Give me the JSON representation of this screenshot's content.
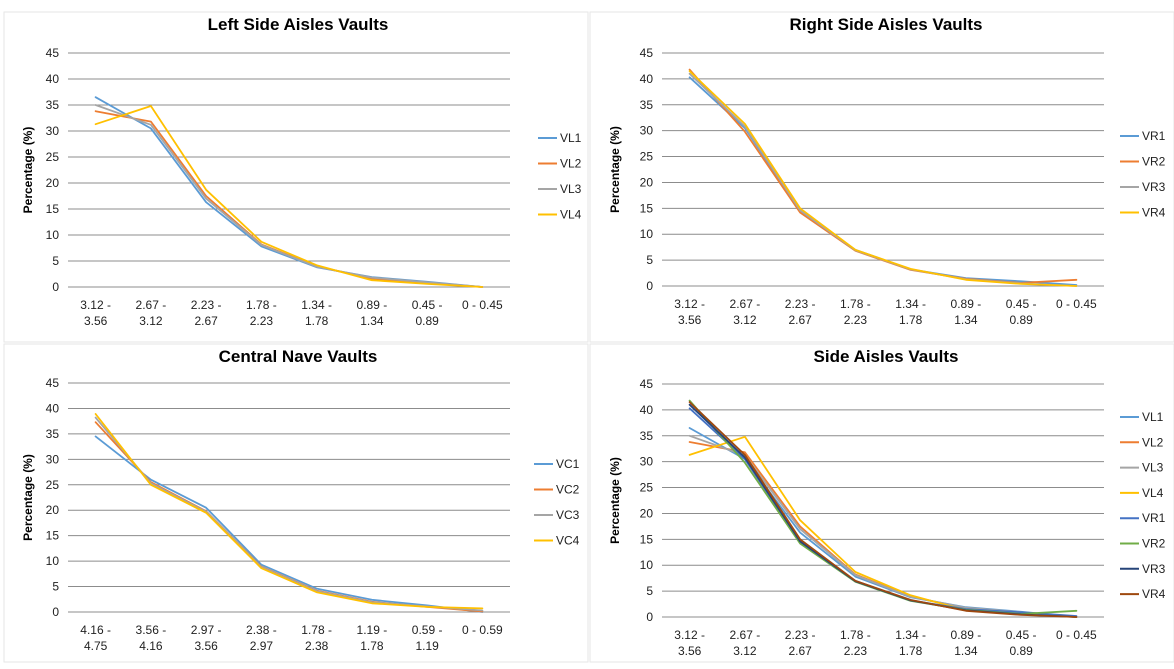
{
  "colors": {
    "VL1": "#5b9bd5",
    "VL2": "#ed7d31",
    "VL3": "#a5a5a5",
    "VL4": "#ffc000",
    "VR1": "#4472c4",
    "VR2": "#70ad47",
    "VR3": "#264478",
    "VR4": "#9e480e"
  },
  "chart_data": [
    {
      "type": "line",
      "title": "Left Side Aisles Vaults",
      "ylabel": "Percentage (%)",
      "xlabel": "",
      "ylim": [
        0,
        45
      ],
      "yticks": [
        0,
        5,
        10,
        15,
        20,
        25,
        30,
        35,
        40,
        45
      ],
      "grid": true,
      "legend": "right",
      "categories": [
        [
          "3.12 -",
          "3.56"
        ],
        [
          "2.67 -",
          "3.12"
        ],
        [
          "2.23 -",
          "2.67"
        ],
        [
          "1.78 -",
          "2.23"
        ],
        [
          "1.34 -",
          "1.78"
        ],
        [
          "0.89 -",
          "1.34"
        ],
        [
          "0.45 -",
          "0.89"
        ],
        [
          "0 - 0.45"
        ]
      ],
      "series": [
        {
          "name": "VL1",
          "color": "#5b9bd5",
          "values": [
            36.5,
            30.5,
            16.3,
            7.8,
            3.8,
            1.9,
            1.0,
            0.0
          ]
        },
        {
          "name": "VL2",
          "color": "#ed7d31",
          "values": [
            33.8,
            31.8,
            17.5,
            8.2,
            4.0,
            1.6,
            0.8,
            0.0
          ]
        },
        {
          "name": "VL3",
          "color": "#a5a5a5",
          "values": [
            35.0,
            31.2,
            17.0,
            8.1,
            3.9,
            1.8,
            0.9,
            0.0
          ]
        },
        {
          "name": "VL4",
          "color": "#ffc000",
          "values": [
            31.3,
            34.8,
            18.7,
            8.7,
            4.2,
            1.3,
            0.6,
            0.0
          ]
        }
      ]
    },
    {
      "type": "line",
      "title": "Right Side Aisles Vaults",
      "ylabel": "Percentage (%)",
      "xlabel": "",
      "ylim": [
        0,
        45
      ],
      "yticks": [
        0,
        5,
        10,
        15,
        20,
        25,
        30,
        35,
        40,
        45
      ],
      "grid": true,
      "legend": "right",
      "categories": [
        [
          "3.12 -",
          "3.56"
        ],
        [
          "2.67 -",
          "3.12"
        ],
        [
          "2.23 -",
          "2.67"
        ],
        [
          "1.78 -",
          "2.23"
        ],
        [
          "1.34 -",
          "1.78"
        ],
        [
          "0.89 -",
          "1.34"
        ],
        [
          "0.45 -",
          "0.89"
        ],
        [
          "0 - 0.45"
        ]
      ],
      "series": [
        {
          "name": "VR1",
          "color": "#5b9bd5",
          "values": [
            40.3,
            30.5,
            14.5,
            7.0,
            3.2,
            1.5,
            0.9,
            0.2
          ]
        },
        {
          "name": "VR2",
          "color": "#ed7d31",
          "values": [
            41.8,
            29.8,
            14.2,
            6.8,
            3.1,
            1.4,
            0.6,
            1.2
          ]
        },
        {
          "name": "VR3",
          "color": "#a5a5a5",
          "values": [
            41.0,
            30.8,
            14.6,
            6.9,
            3.2,
            1.3,
            0.5,
            0.0
          ]
        },
        {
          "name": "VR4",
          "color": "#ffc000",
          "values": [
            41.5,
            31.3,
            15.0,
            7.0,
            3.3,
            1.2,
            0.4,
            0.0
          ]
        }
      ]
    },
    {
      "type": "line",
      "title": "Central Nave Vaults",
      "ylabel": "Percentage (%)",
      "xlabel": "",
      "ylim": [
        0,
        45
      ],
      "yticks": [
        0,
        5,
        10,
        15,
        20,
        25,
        30,
        35,
        40,
        45
      ],
      "grid": true,
      "legend": "right",
      "categories": [
        [
          "4.16 -",
          "4.75"
        ],
        [
          "3.56 -",
          "4.16"
        ],
        [
          "2.97 -",
          "3.56"
        ],
        [
          "2.38 -",
          "2.97"
        ],
        [
          "1.78 -",
          "2.38"
        ],
        [
          "1.19 -",
          "1.78"
        ],
        [
          "0.59 -",
          "1.19"
        ],
        [
          "0 - 0.59"
        ]
      ],
      "series": [
        {
          "name": "VC1",
          "color": "#5b9bd5",
          "values": [
            34.5,
            26.0,
            20.5,
            9.3,
            4.6,
            2.4,
            1.3,
            0.0
          ]
        },
        {
          "name": "VC2",
          "color": "#ed7d31",
          "values": [
            37.3,
            25.5,
            19.8,
            8.9,
            4.2,
            2.0,
            1.0,
            0.1
          ]
        },
        {
          "name": "VC3",
          "color": "#a5a5a5",
          "values": [
            38.2,
            25.3,
            19.7,
            8.8,
            4.1,
            1.9,
            1.1,
            0.3
          ]
        },
        {
          "name": "VC4",
          "color": "#ffc000",
          "values": [
            38.9,
            25.0,
            19.5,
            8.6,
            3.9,
            1.7,
            1.0,
            0.7
          ]
        }
      ]
    },
    {
      "type": "line",
      "title": "Side Aisles Vaults",
      "ylabel": "Percentage (%)",
      "xlabel": "",
      "ylim": [
        0,
        45
      ],
      "yticks": [
        0,
        5,
        10,
        15,
        20,
        25,
        30,
        35,
        40,
        45
      ],
      "grid": true,
      "legend": "right",
      "categories": [
        [
          "3.12 -",
          "3.56"
        ],
        [
          "2.67 -",
          "3.12"
        ],
        [
          "2.23 -",
          "2.67"
        ],
        [
          "1.78 -",
          "2.23"
        ],
        [
          "1.34 -",
          "1.78"
        ],
        [
          "0.89 -",
          "1.34"
        ],
        [
          "0.45 -",
          "0.89"
        ],
        [
          "0 - 0.45"
        ]
      ],
      "series": [
        {
          "name": "VL1",
          "color": "#5b9bd5",
          "values": [
            36.5,
            30.5,
            16.3,
            7.8,
            3.8,
            1.9,
            1.0,
            0.0
          ]
        },
        {
          "name": "VL2",
          "color": "#ed7d31",
          "values": [
            33.8,
            31.8,
            17.5,
            8.2,
            4.0,
            1.6,
            0.8,
            0.0
          ]
        },
        {
          "name": "VL3",
          "color": "#a5a5a5",
          "values": [
            35.0,
            31.2,
            17.0,
            8.1,
            3.9,
            1.8,
            0.9,
            0.0
          ]
        },
        {
          "name": "VL4",
          "color": "#ffc000",
          "values": [
            31.3,
            34.8,
            18.7,
            8.7,
            4.2,
            1.3,
            0.6,
            0.0
          ]
        },
        {
          "name": "VR1",
          "color": "#4472c4",
          "values": [
            40.3,
            30.5,
            14.5,
            7.0,
            3.2,
            1.5,
            0.9,
            0.2
          ]
        },
        {
          "name": "VR2",
          "color": "#70ad47",
          "values": [
            41.8,
            29.8,
            14.2,
            6.8,
            3.1,
            1.4,
            0.6,
            1.2
          ]
        },
        {
          "name": "VR3",
          "color": "#264478",
          "values": [
            41.0,
            30.8,
            14.6,
            6.9,
            3.2,
            1.3,
            0.5,
            0.0
          ]
        },
        {
          "name": "VR4",
          "color": "#9e480e",
          "values": [
            41.5,
            31.3,
            15.0,
            7.0,
            3.3,
            1.2,
            0.4,
            0.0
          ]
        }
      ]
    }
  ]
}
